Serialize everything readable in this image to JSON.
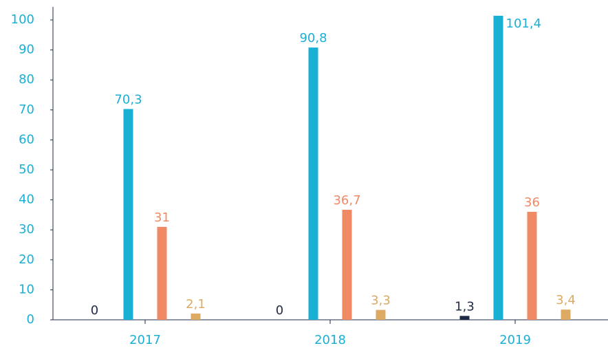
{
  "chart_data": {
    "type": "bar",
    "categories": [
      "2017",
      "2018",
      "2019"
    ],
    "series": [
      {
        "color": "#1f2a44",
        "values": [
          0,
          0,
          1.3
        ],
        "value_labels": [
          "0",
          "0",
          "1,3"
        ]
      },
      {
        "color": "#1aafd4",
        "values": [
          70.3,
          90.8,
          101.4
        ],
        "value_labels": [
          "70,3",
          "90,8",
          "101,4"
        ]
      },
      {
        "color": "#f08a65",
        "values": [
          31,
          36.7,
          36
        ],
        "value_labels": [
          "31",
          "36,7",
          "36"
        ]
      },
      {
        "color": "#dcaa62",
        "values": [
          2.1,
          3.3,
          3.4
        ],
        "value_labels": [
          "2,1",
          "3,3",
          "3,4"
        ]
      }
    ],
    "ylim": [
      0,
      100
    ],
    "yticks": [
      0,
      10,
      20,
      30,
      40,
      50,
      60,
      70,
      80,
      90,
      100
    ],
    "tick_color": "#1aafd4",
    "axis_color": "#1f2a44"
  }
}
